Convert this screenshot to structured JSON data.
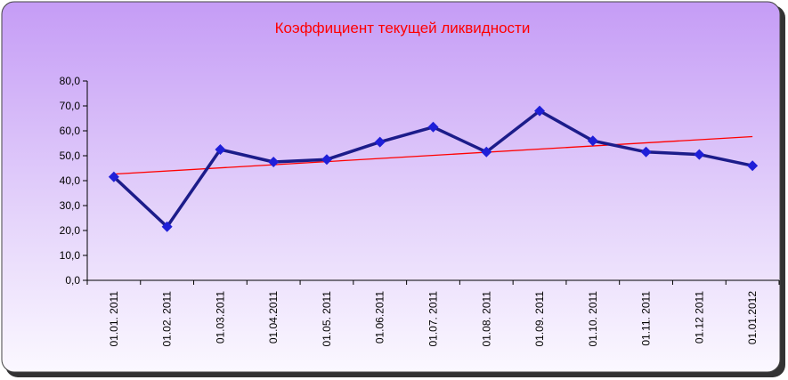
{
  "chart_data": {
    "type": "line",
    "title": "Коэффициент текущей ликвидности",
    "categories": [
      "01.01. 2011",
      "01.02. 2011",
      "01.03.2011",
      "01.04.2011",
      "01.05. 2011",
      "01.06.2011",
      "01.07. 2011",
      "01.08. 2011",
      "01.09. 2011",
      "01.10. 2011",
      "01.11. 2011",
      "01.12 2011",
      "01.01.2012"
    ],
    "series": [
      {
        "color": "#1c1c8a",
        "marker_color": "#1f1fd8",
        "values": [
          41.5,
          21.5,
          52.5,
          47.5,
          48.5,
          55.5,
          61.5,
          51.5,
          68,
          56,
          51.5,
          50.5,
          46
        ]
      }
    ],
    "trendline": true,
    "trendline_color": "#ff0000",
    "ylim": [
      0,
      80
    ],
    "yticks": [
      {
        "value": 0,
        "label": "0,0"
      },
      {
        "value": 10,
        "label": "10,0"
      },
      {
        "value": 20,
        "label": "20,0"
      },
      {
        "value": 30,
        "label": "30,0"
      },
      {
        "value": 40,
        "label": "40,0"
      },
      {
        "value": 50,
        "label": "50,0"
      },
      {
        "value": 60,
        "label": "60,0"
      },
      {
        "value": 70,
        "label": "70,0"
      },
      {
        "value": 80,
        "label": "80,0"
      }
    ],
    "title_color": "#ff0000"
  }
}
